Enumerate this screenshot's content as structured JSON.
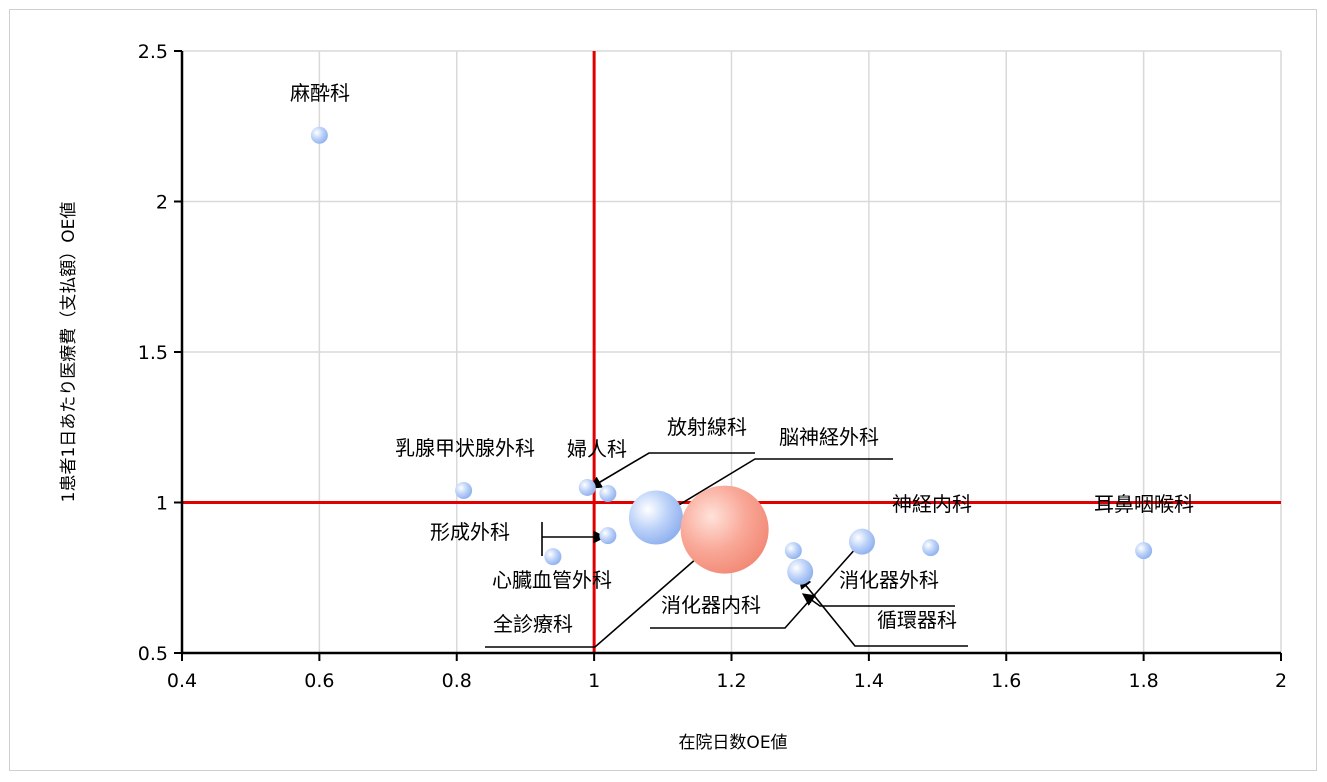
{
  "chart_data": {
    "type": "scatter",
    "xlabel": "在院日数OE値",
    "ylabel": "1患者1日あたり医療費（支払額）OE値",
    "xlim": [
      0.4,
      2
    ],
    "ylim": [
      0.5,
      2.5
    ],
    "xticks": [
      "0.4",
      "0.6",
      "0.8",
      "1",
      "1.2",
      "1.4",
      "1.6",
      "1.8",
      "2"
    ],
    "yticks": [
      "0.5",
      "1",
      "1.5",
      "2",
      "2.5"
    ],
    "grid": true,
    "reference_lines": {
      "x": 1,
      "y": 1,
      "color": "#e00000"
    },
    "colors": {
      "point": "#a9c4f5",
      "highlight": "#f7a08f",
      "grid": "#d9d9d9"
    },
    "points": [
      {
        "label": "麻酔科",
        "x": 0.6,
        "y": 2.22,
        "size": "small"
      },
      {
        "label": "乳腺甲状腺外科",
        "x": 0.81,
        "y": 1.04,
        "size": "small"
      },
      {
        "label": "婦人科",
        "x": 0.99,
        "y": 1.05,
        "size": "small"
      },
      {
        "label": "放射線科",
        "x": 1.02,
        "y": 1.03,
        "size": "small"
      },
      {
        "label": "脳神経外科",
        "x": 1.09,
        "y": 0.95,
        "size": "large"
      },
      {
        "label": "形成外科",
        "x": 1.02,
        "y": 0.89,
        "size": "small"
      },
      {
        "label": "心臓血管外科",
        "x": 0.94,
        "y": 0.82,
        "size": "small"
      },
      {
        "label": "全診療科",
        "x": 1.19,
        "y": 0.91,
        "size": "largest",
        "highlight": true
      },
      {
        "label": "消化器内科",
        "x": 1.29,
        "y": 0.84,
        "size": "small"
      },
      {
        "label": "循環器科",
        "x": 1.3,
        "y": 0.77,
        "size": "medium"
      },
      {
        "label": "消化器外科",
        "x": 1.39,
        "y": 0.87,
        "size": "medium"
      },
      {
        "label": "神経内科",
        "x": 1.49,
        "y": 0.85,
        "size": "small"
      },
      {
        "label": "耳鼻咽喉科",
        "x": 1.8,
        "y": 0.84,
        "size": "small"
      }
    ]
  }
}
